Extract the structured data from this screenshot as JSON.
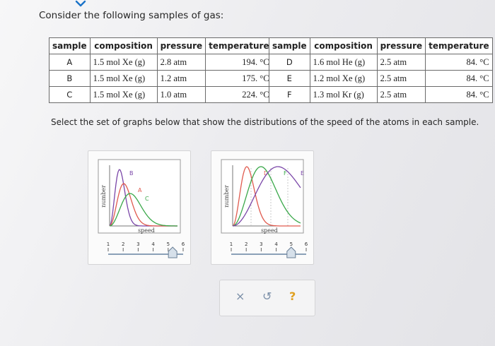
{
  "prompt": "Consider the following samples of gas:",
  "headers": {
    "sample": "sample",
    "composition": "composition",
    "pressure": "pressure",
    "temperature": "temperature"
  },
  "samples_left": [
    {
      "sample": "A",
      "composition": "1.5 mol Xe (g)",
      "pressure": "2.8 atm",
      "temperature": "194. °C"
    },
    {
      "sample": "B",
      "composition": "1.5 mol Xe (g)",
      "pressure": "1.2 atm",
      "temperature": "175. °C"
    },
    {
      "sample": "C",
      "composition": "1.5 mol Xe (g)",
      "pressure": "1.0 atm",
      "temperature": "224. °C"
    }
  ],
  "samples_right": [
    {
      "sample": "D",
      "composition": "1.6 mol He (g)",
      "pressure": "2.5 atm",
      "temperature": "84. °C"
    },
    {
      "sample": "E",
      "composition": "1.2 mol Xe (g)",
      "pressure": "2.5 atm",
      "temperature": "84. °C"
    },
    {
      "sample": "F",
      "composition": "1.3 mol Kr (g)",
      "pressure": "2.5 atm",
      "temperature": "84. °C"
    }
  ],
  "instruction": "Select the set of graphs below that show the distributions of the speed of the atoms in each sample.",
  "graphs": [
    {
      "ylabel": "number",
      "xlabel": "speed",
      "labels": [
        "B",
        "A",
        "C"
      ],
      "slider_ticks": [
        "1",
        "2",
        "3",
        "4",
        "5",
        "6"
      ],
      "slider_value": 5.3,
      "colors": [
        "#7a46a8",
        "#e05a4e",
        "#3aa84a"
      ]
    },
    {
      "ylabel": "number",
      "xlabel": "speed",
      "labels": [
        "D",
        "F",
        "E"
      ],
      "slider_ticks": [
        "1",
        "2",
        "3",
        "4",
        "5",
        "6"
      ],
      "slider_value": 5.0,
      "colors": [
        "#e05a4e",
        "#3aa84a",
        "#7a46a8"
      ]
    }
  ],
  "tools": {
    "clear": "×",
    "undo": "↺",
    "help": "?"
  },
  "colors": {
    "accent": "#1a73c8",
    "help": "#e0a020",
    "tool": "#7b8fa8"
  }
}
